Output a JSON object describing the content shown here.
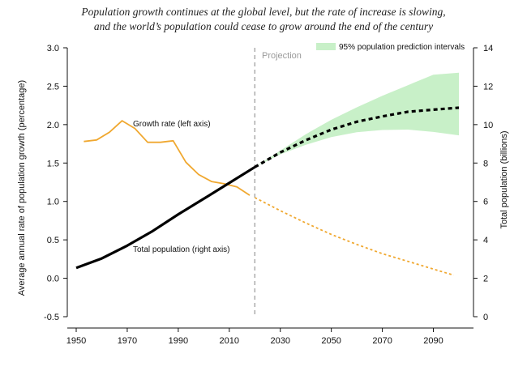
{
  "chart_data": {
    "type": "line",
    "title_line1": "Population growth continues at the global level, but the rate of increase is slowing,",
    "title_line2": "and the world’s population could cease to grow around the end of the century",
    "ylabel_left": "Average annual rate of population growth (percentage)",
    "ylabel_right": "Total population (billions)",
    "xlim": [
      1950,
      2100
    ],
    "ylim_left": [
      -0.5,
      3.0
    ],
    "ylim_right": [
      0,
      14
    ],
    "x_ticks": [
      1950,
      1970,
      1990,
      2010,
      2030,
      2050,
      2070,
      2090
    ],
    "y_left_ticks": [
      "-0.5",
      "0.0",
      "0.5",
      "1.0",
      "1.5",
      "2.0",
      "2.5",
      "3.0"
    ],
    "y_right_ticks": [
      "0",
      "2",
      "4",
      "6",
      "8",
      "10",
      "12",
      "14"
    ],
    "projection_start": 2020,
    "projection_label": "Projection",
    "legend_label": "95% population prediction intervals",
    "colors": {
      "growth": "#f0a830",
      "population": "#000000",
      "interval": "#c8f0c8",
      "projection_line": "#999999"
    },
    "series": [
      {
        "name": "Growth rate (left axis)",
        "axis": "left",
        "estimates": [
          [
            1953,
            1.78
          ],
          [
            1958,
            1.8
          ],
          [
            1963,
            1.9
          ],
          [
            1968,
            2.05
          ],
          [
            1973,
            1.95
          ],
          [
            1978,
            1.77
          ],
          [
            1983,
            1.77
          ],
          [
            1988,
            1.79
          ],
          [
            1993,
            1.51
          ],
          [
            1998,
            1.35
          ],
          [
            2003,
            1.26
          ],
          [
            2008,
            1.23
          ],
          [
            2013,
            1.19
          ],
          [
            2018,
            1.08
          ]
        ],
        "projections": [
          [
            2020,
            1.05
          ],
          [
            2030,
            0.88
          ],
          [
            2040,
            0.72
          ],
          [
            2050,
            0.57
          ],
          [
            2060,
            0.44
          ],
          [
            2070,
            0.32
          ],
          [
            2080,
            0.22
          ],
          [
            2090,
            0.12
          ],
          [
            2098,
            0.04
          ]
        ]
      },
      {
        "name": "Total population (right axis)",
        "axis": "right",
        "estimates": [
          [
            1950,
            2.54
          ],
          [
            1960,
            3.03
          ],
          [
            1970,
            3.7
          ],
          [
            1980,
            4.46
          ],
          [
            1990,
            5.33
          ],
          [
            2000,
            6.14
          ],
          [
            2010,
            6.96
          ],
          [
            2020,
            7.79
          ]
        ],
        "projections": [
          [
            2020,
            7.79
          ],
          [
            2030,
            8.55
          ],
          [
            2040,
            9.19
          ],
          [
            2050,
            9.74
          ],
          [
            2060,
            10.15
          ],
          [
            2070,
            10.43
          ],
          [
            2080,
            10.67
          ],
          [
            2090,
            10.78
          ],
          [
            2100,
            10.88
          ]
        ],
        "interval": {
          "x": [
            2020,
            2030,
            2040,
            2050,
            2060,
            2070,
            2080,
            2090,
            2100
          ],
          "lower": [
            7.79,
            8.45,
            8.95,
            9.35,
            9.6,
            9.72,
            9.74,
            9.62,
            9.44
          ],
          "upper": [
            7.79,
            8.65,
            9.5,
            10.25,
            10.9,
            11.5,
            12.05,
            12.6,
            12.7
          ]
        }
      }
    ]
  }
}
